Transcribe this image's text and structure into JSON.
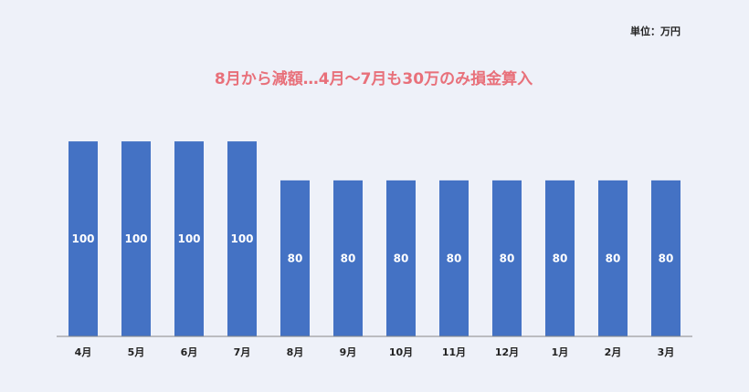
{
  "chart_data": {
    "type": "bar",
    "title": "8月から減額…4月〜7月も30万のみ損金算入",
    "unit_label": "単位：万円",
    "categories": [
      "4月",
      "5月",
      "6月",
      "7月",
      "8月",
      "9月",
      "10月",
      "11月",
      "12月",
      "1月",
      "2月",
      "3月"
    ],
    "values": [
      100,
      100,
      100,
      100,
      80,
      80,
      80,
      80,
      80,
      80,
      80,
      80
    ],
    "data_labels": [
      "100",
      "100",
      "100",
      "100",
      "80",
      "80",
      "80",
      "80",
      "80",
      "80",
      "80",
      "80"
    ],
    "ylim": [
      0,
      115
    ],
    "bar_color": "#4472c4",
    "title_color": "#e8707a",
    "grid": false,
    "legend": "none"
  }
}
